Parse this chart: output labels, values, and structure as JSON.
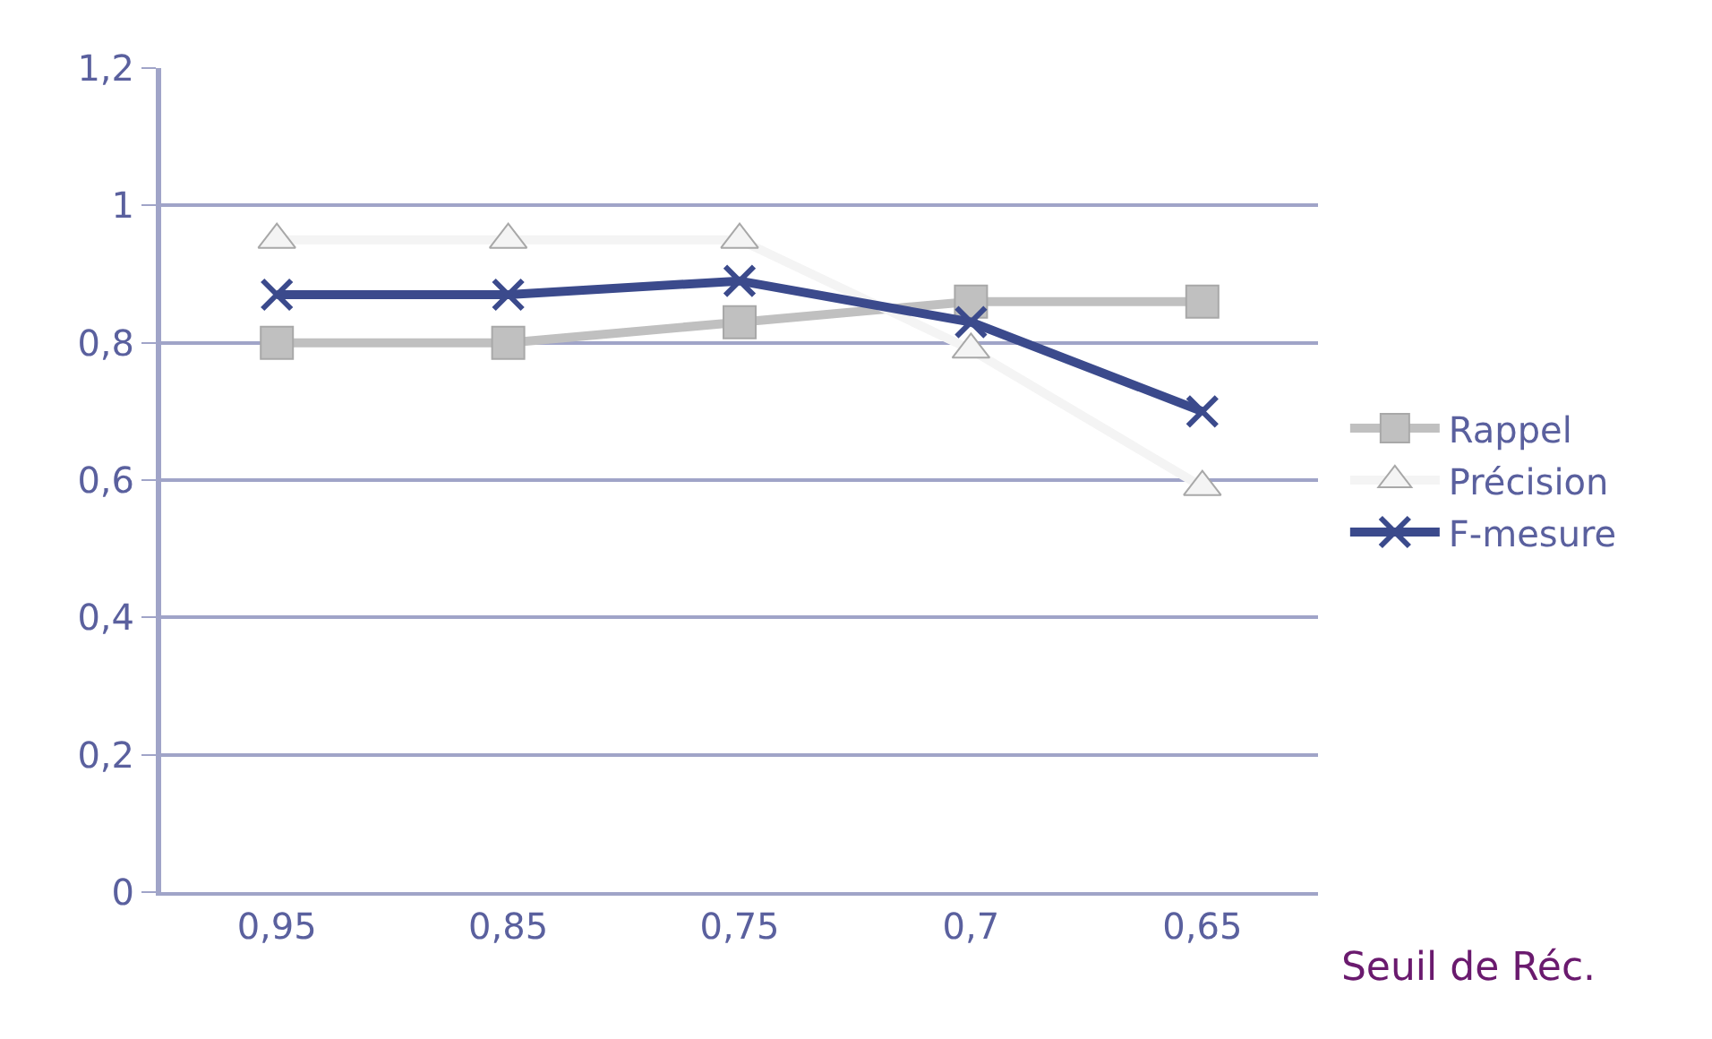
{
  "chart_data": {
    "type": "line",
    "xlabel": "Seuil de Réc.",
    "categories": [
      "0,95",
      "0,85",
      "0,75",
      "0,7",
      "0,65"
    ],
    "series": [
      {
        "name": "Rappel",
        "color": "#c0c0c0",
        "marker": "square",
        "values": [
          0.8,
          0.8,
          0.83,
          0.86,
          0.86
        ]
      },
      {
        "name": "Précision",
        "color": "#f4f4f4",
        "marker": "triangle",
        "values": [
          0.95,
          0.95,
          0.95,
          0.79,
          0.59
        ]
      },
      {
        "name": "F-mesure",
        "color": "#3b4a8c",
        "marker": "cross",
        "values": [
          0.87,
          0.87,
          0.89,
          0.83,
          0.7
        ]
      }
    ],
    "ylim": [
      0,
      1.2
    ],
    "yticks": [
      0,
      {
        "value": 0.2,
        "label": "0,2"
      },
      {
        "value": 0.4,
        "label": "0,4"
      },
      {
        "value": 0.6,
        "label": "0,6"
      },
      {
        "value": 0.8,
        "label": "0,8"
      },
      1,
      {
        "value": 1.2,
        "label": "1,2"
      }
    ],
    "grid": "y",
    "legend": "right",
    "line_style": "solid"
  }
}
